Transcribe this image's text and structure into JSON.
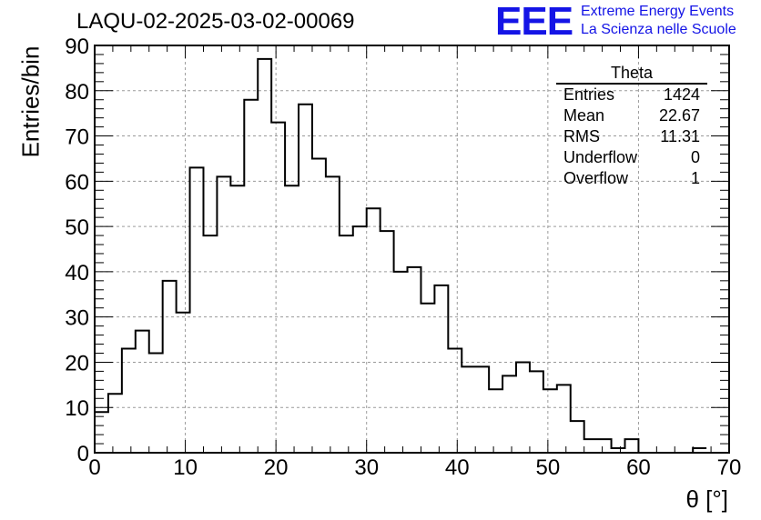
{
  "header": {
    "title": "LAQU-02-2025-03-02-00069",
    "logo_mark": "EEE",
    "logo_line1": "Extreme Energy Events",
    "logo_line2": "La Scienza nelle Scuole"
  },
  "stats_box": {
    "title": "Theta",
    "rows": [
      {
        "label": "Entries",
        "value": "1424"
      },
      {
        "label": "Mean",
        "value": "22.67"
      },
      {
        "label": "RMS",
        "value": "11.31"
      },
      {
        "label": "Underflow",
        "value": "0"
      },
      {
        "label": "Overflow",
        "value": "1"
      }
    ]
  },
  "chart_data": {
    "type": "histogram",
    "title": "LAQU-02-2025-03-02-00069",
    "xlabel": "θ [°]",
    "ylabel": "Entries/bin",
    "xlim": [
      0,
      70
    ],
    "ylim": [
      0,
      90
    ],
    "bin_width": 1.5,
    "bin_edges_start": 0,
    "counts": [
      9,
      13,
      23,
      27,
      22,
      38,
      31,
      63,
      48,
      61,
      59,
      78,
      87,
      73,
      59,
      77,
      65,
      61,
      48,
      50,
      54,
      49,
      40,
      41,
      33,
      37,
      23,
      19,
      19,
      14,
      17,
      20,
      18,
      14,
      15,
      7,
      3,
      3,
      1,
      3,
      0,
      0,
      0,
      0,
      1
    ],
    "x_ticks": [
      0,
      10,
      20,
      30,
      40,
      50,
      60,
      70
    ],
    "y_ticks": [
      0,
      10,
      20,
      30,
      40,
      50,
      60,
      70,
      80,
      90
    ],
    "grid": true,
    "line_color": "#000000"
  }
}
